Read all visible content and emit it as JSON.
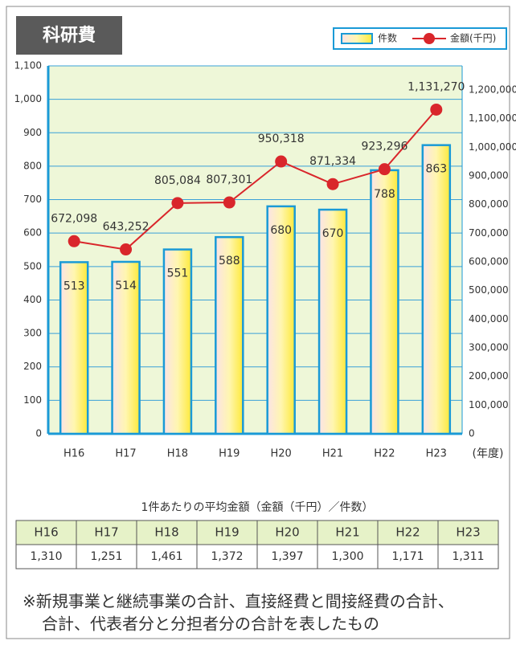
{
  "chart_data": {
    "type": "bar_line",
    "title": "科研費",
    "categories": [
      "H16",
      "H17",
      "H18",
      "H19",
      "H20",
      "H21",
      "H22",
      "H23"
    ],
    "x_label": "(年度)",
    "series": [
      {
        "name": "件数",
        "color": "#1a9ad6",
        "values": [
          513,
          514,
          551,
          588,
          680,
          670,
          788,
          863
        ]
      },
      {
        "name": "金額(千円)",
        "color": "#d9262b",
        "axis": "y2",
        "values": [
          672098,
          643252,
          805084,
          807301,
          950318,
          871334,
          923296,
          1131270
        ],
        "value_labels": [
          "672,098",
          "643,252",
          "805,084",
          "807,301",
          "950,318",
          "871,334",
          "923,296",
          "1,131,270"
        ]
      }
    ],
    "ylim": [
      0,
      1100
    ],
    "yticks": [
      0,
      100,
      200,
      300,
      400,
      500,
      600,
      700,
      800,
      900,
      {
        "value": 1000,
        "label": "1,000"
      },
      {
        "value": 1100,
        "label": "1,100"
      }
    ],
    "y2lim": [
      0,
      1284000
    ],
    "y2ticks": [
      0,
      {
        "value": 100000,
        "label": "100,000"
      },
      {
        "value": 200000,
        "label": "200,000"
      },
      {
        "value": 300000,
        "label": "300,000"
      },
      {
        "value": 400000,
        "label": "400,000"
      },
      {
        "value": 500000,
        "label": "500,000"
      },
      {
        "value": 600000,
        "label": "600,000"
      },
      {
        "value": 700000,
        "label": "700,000"
      },
      {
        "value": 800000,
        "label": "800,000"
      },
      {
        "value": 900000,
        "label": "900,000"
      },
      {
        "value": 1000000,
        "label": "1,000,000"
      },
      {
        "value": 1100000,
        "label": "1,100,000"
      },
      {
        "value": 1200000,
        "label": "1,200,000"
      }
    ],
    "grid": true,
    "legend": "top-right"
  },
  "table": {
    "caption": "1件あたりの平均金額（金額（千円）／件数）",
    "values": [
      "1,310",
      "1,251",
      "1,461",
      "1,372",
      "1,397",
      "1,300",
      "1,171",
      "1,311"
    ]
  },
  "note": [
    "※新規事業と継続事業の合計、直接経費と間接経費の合計、",
    "合計、代表者分と分担者分の合計を表したもの"
  ]
}
